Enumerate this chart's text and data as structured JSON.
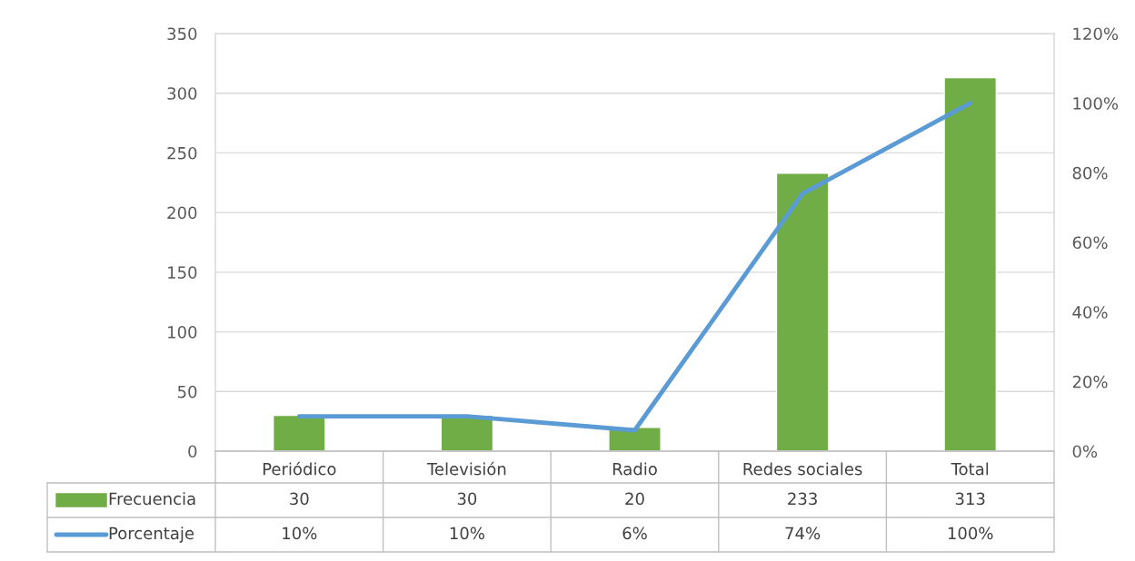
{
  "chart_data": {
    "type": "bar",
    "categories": [
      "Periódico",
      "Televisión",
      "Radio",
      "Redes sociales",
      "Total"
    ],
    "series": [
      {
        "name": "Frecuencia",
        "color": "#70ad47",
        "values": [
          30,
          30,
          20,
          233,
          313
        ],
        "value_labels": [
          "30",
          "30",
          "20",
          "233",
          "313"
        ]
      },
      {
        "name": "Porcentaje",
        "type": "line",
        "axis": "y2",
        "color": "#5b9bd5",
        "values": [
          10,
          10,
          6,
          74,
          100
        ],
        "value_labels": [
          "10%",
          "10%",
          "6%",
          "74%",
          "100%"
        ]
      }
    ],
    "ylim": [
      0,
      350
    ],
    "yticks": [
      0,
      50,
      100,
      150,
      200,
      250,
      300,
      350
    ],
    "y2lim": [
      0,
      120
    ],
    "y2ticks": [
      {
        "value": 0,
        "label": "0%"
      },
      {
        "value": 20,
        "label": "20%"
      },
      {
        "value": 40,
        "label": "40%"
      },
      {
        "value": 60,
        "label": "60%"
      },
      {
        "value": 80,
        "label": "80%"
      },
      {
        "value": 100,
        "label": "100%"
      },
      {
        "value": 120,
        "label": "120%"
      }
    ],
    "grid": "y",
    "legend": "bottom",
    "marker": "none",
    "line_style": "solid"
  }
}
